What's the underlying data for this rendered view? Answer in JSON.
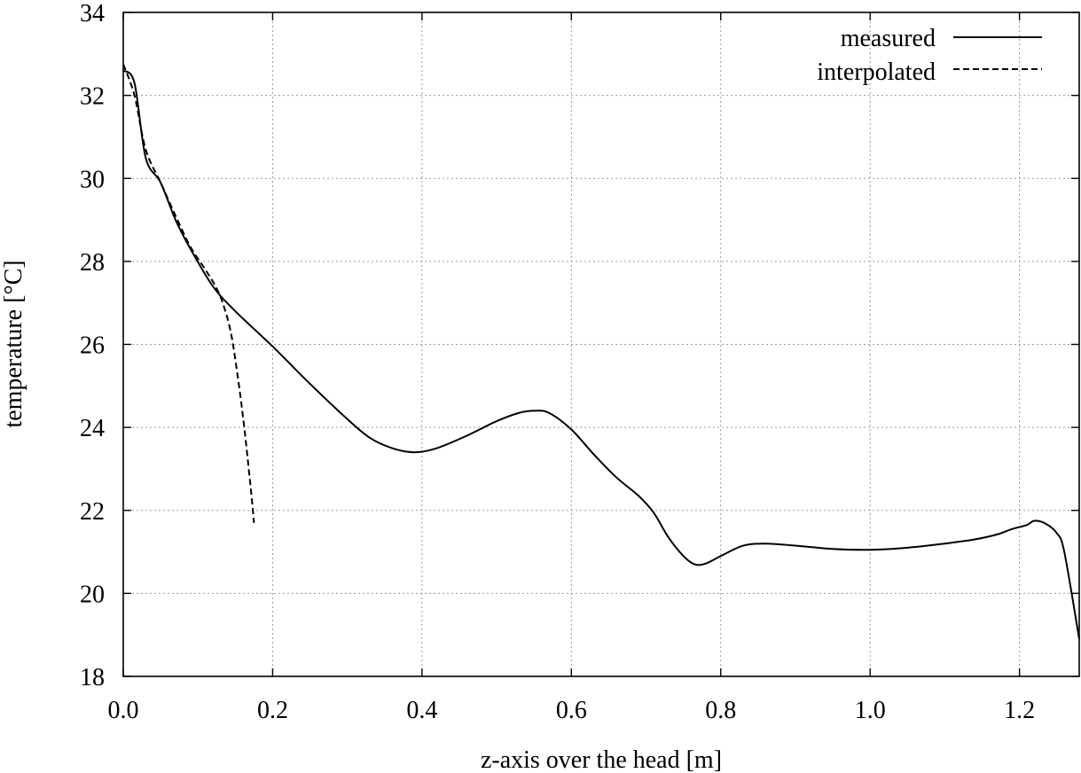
{
  "chart_data": {
    "type": "line",
    "title": "",
    "xlabel": "z-axis over the head [m]",
    "ylabel": "temperature [°C]",
    "xlim": [
      0.0,
      1.28
    ],
    "ylim": [
      18,
      34
    ],
    "grid": true,
    "legend_position": "top-right",
    "x_ticks": [
      0.0,
      0.2,
      0.4,
      0.6,
      0.8,
      1.0,
      1.2
    ],
    "x_tick_labels": [
      "0.0",
      "0.2",
      "0.4",
      "0.6",
      "0.8",
      "1.0",
      "1.2"
    ],
    "y_ticks": [
      18,
      20,
      22,
      24,
      26,
      28,
      30,
      32,
      34
    ],
    "y_tick_labels": [
      "18",
      "20",
      "22",
      "24",
      "26",
      "28",
      "30",
      "32",
      "34"
    ],
    "series": [
      {
        "name": "measured",
        "style": "solid",
        "color": "#000000",
        "x": [
          0.0,
          0.015,
          0.03,
          0.05,
          0.07,
          0.09,
          0.12,
          0.15,
          0.2,
          0.25,
          0.3,
          0.33,
          0.36,
          0.39,
          0.42,
          0.46,
          0.5,
          0.53,
          0.55,
          0.57,
          0.6,
          0.63,
          0.66,
          0.69,
          0.71,
          0.73,
          0.75,
          0.765,
          0.78,
          0.8,
          0.83,
          0.86,
          0.9,
          0.95,
          1.0,
          1.05,
          1.1,
          1.14,
          1.17,
          1.19,
          1.21,
          1.22,
          1.235,
          1.25,
          1.26,
          1.28
        ],
        "y": [
          32.6,
          32.3,
          30.5,
          29.9,
          29.0,
          28.3,
          27.4,
          26.8,
          25.95,
          25.05,
          24.2,
          23.75,
          23.5,
          23.4,
          23.5,
          23.8,
          24.15,
          24.35,
          24.4,
          24.35,
          23.95,
          23.35,
          22.8,
          22.35,
          21.95,
          21.35,
          20.9,
          20.7,
          20.72,
          20.9,
          21.15,
          21.2,
          21.15,
          21.07,
          21.05,
          21.1,
          21.2,
          21.3,
          21.42,
          21.55,
          21.65,
          21.75,
          21.68,
          21.45,
          21.0,
          18.9
        ]
      },
      {
        "name": "interpolated",
        "style": "dashed",
        "color": "#000000",
        "x": [
          0.0,
          0.015,
          0.03,
          0.05,
          0.07,
          0.09,
          0.11,
          0.125,
          0.135,
          0.145,
          0.155,
          0.162,
          0.168,
          0.172,
          0.175
        ],
        "y": [
          32.75,
          32.0,
          30.7,
          29.9,
          29.1,
          28.35,
          27.8,
          27.35,
          26.9,
          26.2,
          25.0,
          24.0,
          23.0,
          22.3,
          21.7
        ]
      }
    ]
  }
}
